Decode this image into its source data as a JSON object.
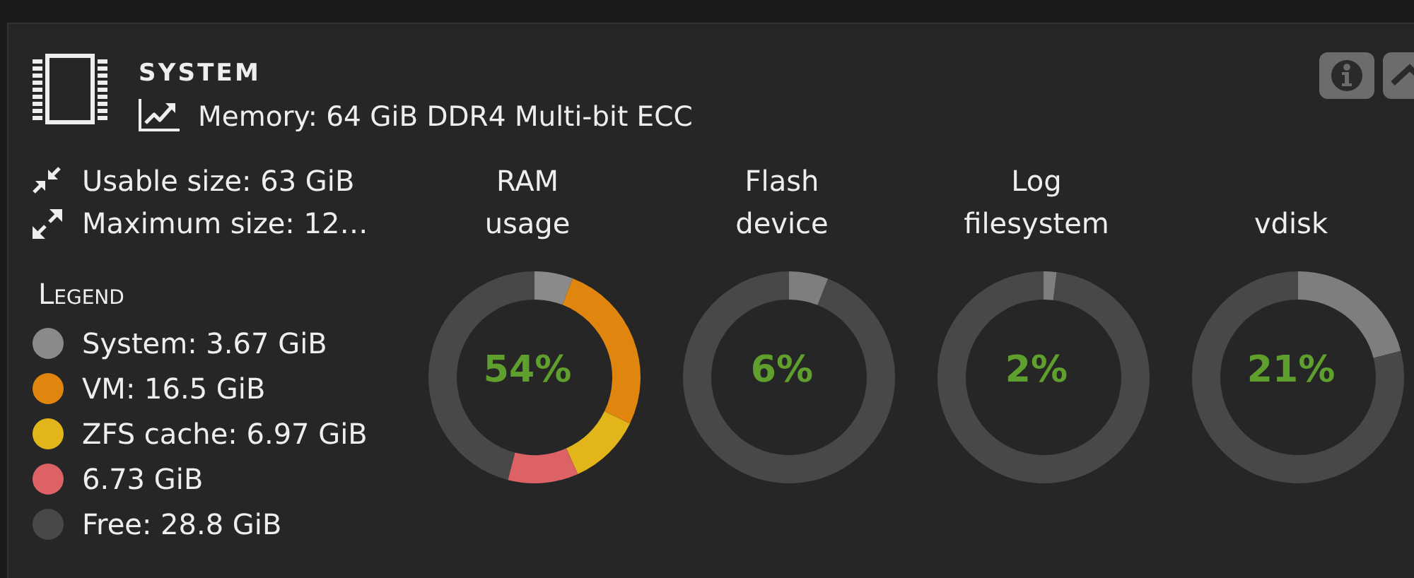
{
  "chart_data": [
    {
      "type": "other",
      "title": "SYSTEM",
      "subtitle": "Memory: 64 GiB DDR4 Multi-bit ECC",
      "annotations": [
        "Usable size: 63 GiB",
        "Maximum size: 12…"
      ]
    },
    {
      "type": "donut",
      "title": "RAM usage",
      "categories": [
        "System: 3.67 GiB",
        "VM: 16.5 GiB",
        "ZFS cache: 6.97 GiB",
        "6.73 GiB",
        "Free: 28.8 GiB"
      ],
      "values": [
        3.67,
        16.5,
        6.97,
        6.73,
        28.8
      ],
      "colors": [
        "#8a8a8a",
        "#e0860e",
        "#e2b51a",
        "#dc6266",
        "#484848"
      ],
      "legend": "left",
      "legend_title": "Legend",
      "annotations": [
        "54%"
      ]
    },
    {
      "type": "donut",
      "title": "Flash device",
      "categories": [
        null,
        null
      ],
      "values": [
        6,
        94
      ],
      "colors": [
        "#7e7e7e",
        "#484848"
      ],
      "annotations": [
        "6%"
      ]
    },
    {
      "type": "donut",
      "title": "Log filesystem",
      "categories": [
        null,
        null
      ],
      "values": [
        2,
        98
      ],
      "colors": [
        "#7e7e7e",
        "#484848"
      ],
      "annotations": [
        "2%"
      ]
    },
    {
      "type": "donut",
      "title": "vdisk",
      "categories": [
        null,
        null
      ],
      "values": [
        21,
        79
      ],
      "colors": [
        "#7e7e7e",
        "#484848"
      ],
      "annotations": [
        "21%"
      ]
    }
  ]
}
